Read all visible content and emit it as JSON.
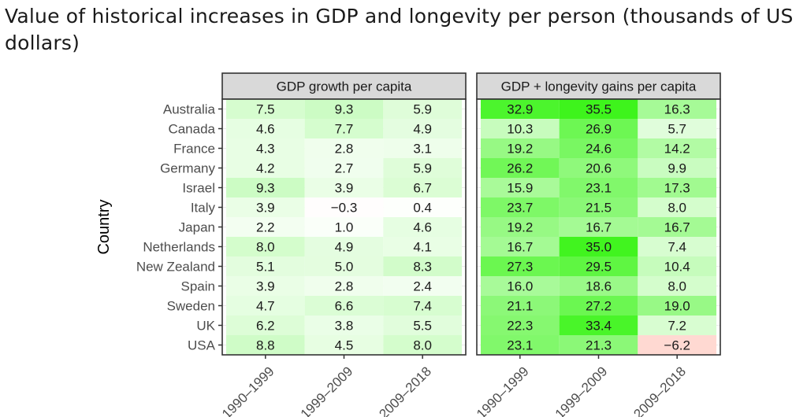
{
  "title": "Value of historical increases in GDP and longevity per person (thousands of US dollars)",
  "chart_data": {
    "type": "heatmap",
    "ylabel": "Country",
    "xlabel": "",
    "countries": [
      "Australia",
      "Canada",
      "France",
      "Germany",
      "Israel",
      "Italy",
      "Japan",
      "Netherlands",
      "New Zealand",
      "Spain",
      "Sweden",
      "UK",
      "USA"
    ],
    "periods": [
      "1990–1999",
      "1999–2009",
      "2009–2018"
    ],
    "colors": {
      "low": "#ffd9d2",
      "zero": "#ffffff",
      "high": "#3ef41c"
    },
    "panels": [
      {
        "name": "GDP growth per capita",
        "values": [
          [
            7.5,
            9.3,
            5.9
          ],
          [
            4.6,
            7.7,
            4.9
          ],
          [
            4.3,
            2.8,
            3.1
          ],
          [
            4.2,
            2.7,
            5.9
          ],
          [
            9.3,
            3.9,
            6.7
          ],
          [
            3.9,
            -0.3,
            0.4
          ],
          [
            2.2,
            1.0,
            4.6
          ],
          [
            8.0,
            4.9,
            4.1
          ],
          [
            5.1,
            5.0,
            8.3
          ],
          [
            3.9,
            2.8,
            2.4
          ],
          [
            4.7,
            6.6,
            7.4
          ],
          [
            6.2,
            3.8,
            5.5
          ],
          [
            8.8,
            4.5,
            8.0
          ]
        ]
      },
      {
        "name": "GDP + longevity gains per capita",
        "values": [
          [
            32.9,
            35.5,
            16.3
          ],
          [
            10.3,
            26.9,
            5.7
          ],
          [
            19.2,
            24.6,
            14.2
          ],
          [
            26.2,
            20.6,
            9.9
          ],
          [
            15.9,
            23.1,
            17.3
          ],
          [
            23.7,
            21.5,
            8.0
          ],
          [
            19.2,
            16.7,
            16.7
          ],
          [
            16.7,
            35.0,
            7.4
          ],
          [
            27.3,
            29.5,
            10.4
          ],
          [
            16.0,
            18.6,
            8.0
          ],
          [
            21.1,
            27.2,
            19.0
          ],
          [
            22.3,
            33.4,
            7.2
          ],
          [
            23.1,
            21.3,
            -6.2
          ]
        ]
      }
    ]
  }
}
